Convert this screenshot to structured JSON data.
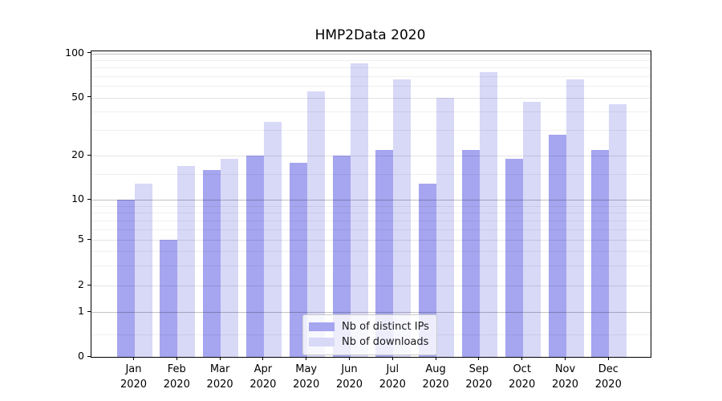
{
  "chart_data": {
    "type": "bar",
    "title": "HMP2Data 2020",
    "categories": [
      "Jan 2020",
      "Feb 2020",
      "Mar 2020",
      "Apr 2020",
      "May 2020",
      "Jun 2020",
      "Jul 2020",
      "Aug 2020",
      "Sep 2020",
      "Oct 2020",
      "Nov 2020",
      "Dec 2020"
    ],
    "series": [
      {
        "name": "Nb of distinct IPs",
        "color": "#a5a5f0",
        "values": [
          10,
          5,
          16,
          20,
          18,
          20,
          22,
          13,
          22,
          19,
          28,
          22
        ]
      },
      {
        "name": "Nb of downloads",
        "color": "#d8d8f7",
        "values": [
          13,
          17,
          19,
          34,
          55,
          86,
          67,
          50,
          75,
          47,
          67,
          45
        ]
      }
    ],
    "ylabel": "",
    "xlabel": "",
    "ylim": [
      0,
      100
    ],
    "y_scale": "asinh-log (ticks 0,1,2,5,10,20,50,100)",
    "y_ticks": [
      0,
      1,
      2,
      5,
      10,
      20,
      50,
      100
    ],
    "y_minor_gridlines": [
      0.5,
      3,
      4,
      6,
      7,
      8,
      9,
      15,
      30,
      40,
      60,
      70,
      80,
      90
    ],
    "grid": true,
    "legend_position": "lower center",
    "axis_color": "#000000"
  }
}
